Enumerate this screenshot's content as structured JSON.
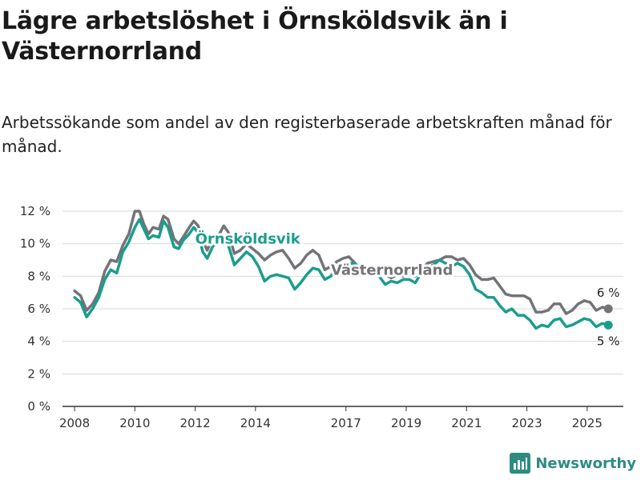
{
  "title": "Lägre arbetslöshet i Örnsköldsvik än i Västernorrland",
  "subtitle": "Arbetssökande som andel av den registerbaserade arbetskraften månad för månad.",
  "brand": {
    "name": "Newsworthy",
    "icon": "bar-chart-logo-icon"
  },
  "colors": {
    "ornskoldsvik": "#1a9e8c",
    "vasternorrland": "#747378",
    "grid": "#d9d9d9",
    "axis": "#333333"
  },
  "chart_data": {
    "type": "line",
    "title": "Lägre arbetslöshet i Örnsköldsvik än i Västernorrland",
    "xlabel": "",
    "ylabel": "",
    "xlim": [
      2007.6,
      2026.2
    ],
    "ylim": [
      0,
      12
    ],
    "y_ticks": [
      0,
      2,
      4,
      6,
      8,
      10,
      12
    ],
    "y_tick_labels": [
      "0 %",
      "2 %",
      "4 %",
      "6 %",
      "8 %",
      "10 %",
      "12 %"
    ],
    "x_ticks": [
      2008,
      2010,
      2012,
      2014,
      2017,
      2019,
      2021,
      2023,
      2025
    ],
    "x_tick_labels": [
      "2008",
      "2010",
      "2012",
      "2014",
      "2017",
      "2019",
      "2021",
      "2023",
      "2025"
    ],
    "grid": true,
    "series": [
      {
        "name": "Västernorrland",
        "label": "Västernorrland",
        "end_label": "6 %",
        "points": [
          [
            2008,
            7.1
          ],
          [
            2008.2,
            6.8
          ],
          [
            2008.4,
            5.9
          ],
          [
            2008.6,
            6.3
          ],
          [
            2008.8,
            7.0
          ],
          [
            2009.0,
            8.3
          ],
          [
            2009.2,
            9.0
          ],
          [
            2009.4,
            8.9
          ],
          [
            2009.6,
            9.9
          ],
          [
            2009.8,
            10.6
          ],
          [
            2010.0,
            12.0
          ],
          [
            2010.15,
            12.0
          ],
          [
            2010.3,
            11.2
          ],
          [
            2010.45,
            10.6
          ],
          [
            2010.6,
            11.0
          ],
          [
            2010.8,
            10.9
          ],
          [
            2010.95,
            11.7
          ],
          [
            2011.1,
            11.5
          ],
          [
            2011.3,
            10.3
          ],
          [
            2011.45,
            10.0
          ],
          [
            2011.6,
            10.4
          ],
          [
            2011.8,
            11.0
          ],
          [
            2011.95,
            11.4
          ],
          [
            2012.1,
            11.1
          ],
          [
            2012.25,
            10.2
          ],
          [
            2012.4,
            9.6
          ],
          [
            2012.6,
            10.4
          ],
          [
            2012.8,
            10.6
          ],
          [
            2012.95,
            11.1
          ],
          [
            2013.1,
            10.7
          ],
          [
            2013.3,
            9.4
          ],
          [
            2013.5,
            9.6
          ],
          [
            2013.7,
            10.0
          ],
          [
            2013.9,
            9.7
          ],
          [
            2014.1,
            9.4
          ],
          [
            2014.3,
            9.0
          ],
          [
            2014.5,
            9.3
          ],
          [
            2014.7,
            9.5
          ],
          [
            2014.9,
            9.6
          ],
          [
            2015.1,
            9.1
          ],
          [
            2015.3,
            8.5
          ],
          [
            2015.5,
            8.8
          ],
          [
            2015.7,
            9.3
          ],
          [
            2015.9,
            9.6
          ],
          [
            2016.1,
            9.3
          ],
          [
            2016.3,
            8.4
          ],
          [
            2016.5,
            8.6
          ],
          [
            2016.7,
            8.9
          ],
          [
            2016.9,
            9.1
          ],
          [
            2017.1,
            9.2
          ],
          [
            2017.3,
            8.8
          ],
          [
            2017.5,
            8.3
          ],
          [
            2017.7,
            8.6
          ],
          [
            2017.9,
            8.3
          ],
          [
            2018.1,
            8.2
          ],
          [
            2018.3,
            8.1
          ],
          [
            2018.5,
            7.9
          ],
          [
            2018.7,
            8.1
          ],
          [
            2018.9,
            8.0
          ],
          [
            2019.1,
            8.1
          ],
          [
            2019.3,
            8.0
          ],
          [
            2019.5,
            8.3
          ],
          [
            2019.7,
            8.8
          ],
          [
            2019.9,
            8.9
          ],
          [
            2020.1,
            9.0
          ],
          [
            2020.3,
            9.2
          ],
          [
            2020.5,
            9.2
          ],
          [
            2020.7,
            9.0
          ],
          [
            2020.9,
            9.1
          ],
          [
            2021.1,
            8.7
          ],
          [
            2021.3,
            8.1
          ],
          [
            2021.5,
            7.8
          ],
          [
            2021.7,
            7.8
          ],
          [
            2021.9,
            7.9
          ],
          [
            2022.1,
            7.4
          ],
          [
            2022.3,
            6.9
          ],
          [
            2022.5,
            6.8
          ],
          [
            2022.7,
            6.8
          ],
          [
            2022.9,
            6.8
          ],
          [
            2023.1,
            6.6
          ],
          [
            2023.3,
            5.8
          ],
          [
            2023.5,
            5.8
          ],
          [
            2023.7,
            5.9
          ],
          [
            2023.9,
            6.3
          ],
          [
            2024.1,
            6.3
          ],
          [
            2024.3,
            5.7
          ],
          [
            2024.5,
            5.9
          ],
          [
            2024.7,
            6.3
          ],
          [
            2024.9,
            6.5
          ],
          [
            2025.1,
            6.4
          ],
          [
            2025.3,
            5.9
          ],
          [
            2025.5,
            6.1
          ],
          [
            2025.7,
            6.0
          ]
        ]
      },
      {
        "name": "Örnsköldsvik",
        "label": "Örnsköldsvik",
        "end_label": "5 %",
        "points": [
          [
            2008,
            6.7
          ],
          [
            2008.2,
            6.4
          ],
          [
            2008.4,
            5.5
          ],
          [
            2008.6,
            6.0
          ],
          [
            2008.8,
            6.7
          ],
          [
            2009.0,
            7.8
          ],
          [
            2009.2,
            8.4
          ],
          [
            2009.4,
            8.2
          ],
          [
            2009.6,
            9.5
          ],
          [
            2009.8,
            10.1
          ],
          [
            2010.0,
            11.0
          ],
          [
            2010.15,
            11.5
          ],
          [
            2010.3,
            10.9
          ],
          [
            2010.45,
            10.3
          ],
          [
            2010.6,
            10.5
          ],
          [
            2010.8,
            10.4
          ],
          [
            2010.95,
            11.4
          ],
          [
            2011.1,
            11.0
          ],
          [
            2011.3,
            9.8
          ],
          [
            2011.45,
            9.7
          ],
          [
            2011.6,
            10.2
          ],
          [
            2011.8,
            10.6
          ],
          [
            2011.95,
            11.0
          ],
          [
            2012.1,
            10.7
          ],
          [
            2012.25,
            9.5
          ],
          [
            2012.4,
            9.1
          ],
          [
            2012.6,
            9.9
          ],
          [
            2012.8,
            10.0
          ],
          [
            2012.95,
            10.4
          ],
          [
            2013.1,
            9.9
          ],
          [
            2013.3,
            8.7
          ],
          [
            2013.5,
            9.1
          ],
          [
            2013.7,
            9.5
          ],
          [
            2013.9,
            9.2
          ],
          [
            2014.1,
            8.6
          ],
          [
            2014.3,
            7.7
          ],
          [
            2014.5,
            8.0
          ],
          [
            2014.7,
            8.1
          ],
          [
            2014.9,
            8.0
          ],
          [
            2015.1,
            7.9
          ],
          [
            2015.3,
            7.2
          ],
          [
            2015.5,
            7.6
          ],
          [
            2015.7,
            8.1
          ],
          [
            2015.9,
            8.5
          ],
          [
            2016.1,
            8.4
          ],
          [
            2016.3,
            7.8
          ],
          [
            2016.5,
            8.0
          ],
          [
            2016.7,
            8.6
          ],
          [
            2016.9,
            8.8
          ],
          [
            2017.1,
            8.8
          ],
          [
            2017.3,
            8.8
          ],
          [
            2017.5,
            8.2
          ],
          [
            2017.7,
            8.3
          ],
          [
            2017.9,
            8.1
          ],
          [
            2018.1,
            8.0
          ],
          [
            2018.3,
            7.5
          ],
          [
            2018.5,
            7.7
          ],
          [
            2018.7,
            7.6
          ],
          [
            2018.9,
            7.8
          ],
          [
            2019.1,
            7.8
          ],
          [
            2019.3,
            7.6
          ],
          [
            2019.5,
            8.2
          ],
          [
            2019.7,
            8.5
          ],
          [
            2019.9,
            8.7
          ],
          [
            2020.1,
            9.0
          ],
          [
            2020.3,
            8.8
          ],
          [
            2020.5,
            8.6
          ],
          [
            2020.7,
            8.8
          ],
          [
            2020.9,
            8.6
          ],
          [
            2021.1,
            8.1
          ],
          [
            2021.3,
            7.2
          ],
          [
            2021.5,
            7.0
          ],
          [
            2021.7,
            6.7
          ],
          [
            2021.9,
            6.7
          ],
          [
            2022.1,
            6.2
          ],
          [
            2022.3,
            5.8
          ],
          [
            2022.5,
            6.0
          ],
          [
            2022.7,
            5.6
          ],
          [
            2022.9,
            5.6
          ],
          [
            2023.1,
            5.3
          ],
          [
            2023.3,
            4.8
          ],
          [
            2023.5,
            5.0
          ],
          [
            2023.7,
            4.9
          ],
          [
            2023.9,
            5.3
          ],
          [
            2024.1,
            5.4
          ],
          [
            2024.3,
            4.9
          ],
          [
            2024.5,
            5.0
          ],
          [
            2024.7,
            5.2
          ],
          [
            2024.9,
            5.4
          ],
          [
            2025.1,
            5.3
          ],
          [
            2025.3,
            4.9
          ],
          [
            2025.5,
            5.1
          ],
          [
            2025.7,
            5.0
          ]
        ]
      }
    ]
  }
}
